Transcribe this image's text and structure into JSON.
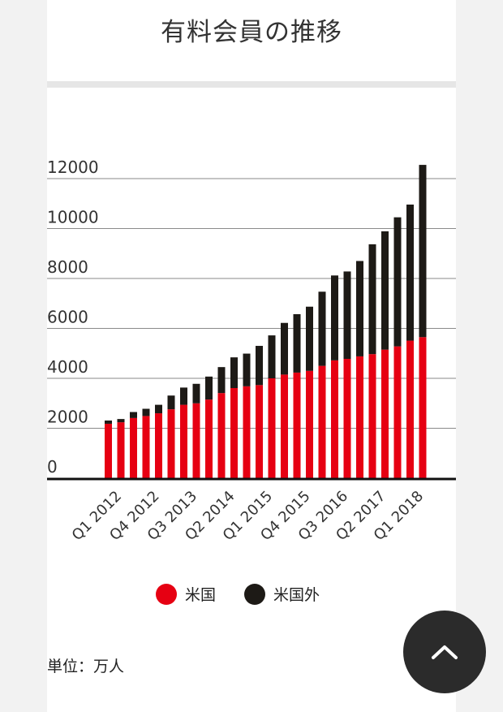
{
  "header": {
    "title": "有料会員の推移"
  },
  "legend": {
    "us": "米国",
    "intl": "米国外"
  },
  "unit_label": "単位：万人",
  "scroll_button": {
    "icon": "chevron-up-icon"
  },
  "colors": {
    "us": "#e60012",
    "intl": "#1d1a16",
    "button": "#2b2b2b"
  },
  "chart_data": {
    "type": "bar",
    "stacked": true,
    "title": "有料会員の推移",
    "xlabel": "",
    "ylabel": "",
    "ylim": [
      0,
      12500
    ],
    "yticks": [
      0,
      2000,
      4000,
      6000,
      8000,
      10000,
      12000
    ],
    "grid": true,
    "legend_position": "bottom",
    "tick_labels": [
      "Q1 2012",
      "Q4 2012",
      "Q3 2013",
      "Q2 2014",
      "Q1 2015",
      "Q4 2015",
      "Q3 2016",
      "Q2 2017",
      "Q1 2018"
    ],
    "categories": [
      "Q1 2012",
      "Q2 2012",
      "Q3 2012",
      "Q4 2012",
      "Q1 2013",
      "Q2 2013",
      "Q3 2013",
      "Q4 2013",
      "Q1 2014",
      "Q2 2014",
      "Q3 2014",
      "Q4 2014",
      "Q1 2015",
      "Q2 2015",
      "Q3 2015",
      "Q4 2015",
      "Q1 2016",
      "Q2 2016",
      "Q3 2016",
      "Q4 2016",
      "Q1 2017",
      "Q2 2017",
      "Q3 2017",
      "Q4 2017",
      "Q1 2018",
      "Q2 2018"
    ],
    "series": [
      {
        "name": "米国",
        "values": [
          2180,
          2240,
          2410,
          2490,
          2600,
          2760,
          2940,
          3000,
          3150,
          3410,
          3610,
          3680,
          3730,
          4000,
          4150,
          4230,
          4300,
          4500,
          4720,
          4780,
          4880,
          4970,
          5150,
          5280,
          5510,
          5650
        ]
      },
      {
        "name": "米国外",
        "values": [
          130,
          130,
          240,
          290,
          340,
          550,
          690,
          780,
          920,
          1040,
          1230,
          1310,
          1570,
          1720,
          2070,
          2340,
          2570,
          2970,
          3400,
          3500,
          3820,
          4400,
          4740,
          5170,
          5450,
          6900
        ]
      }
    ]
  }
}
